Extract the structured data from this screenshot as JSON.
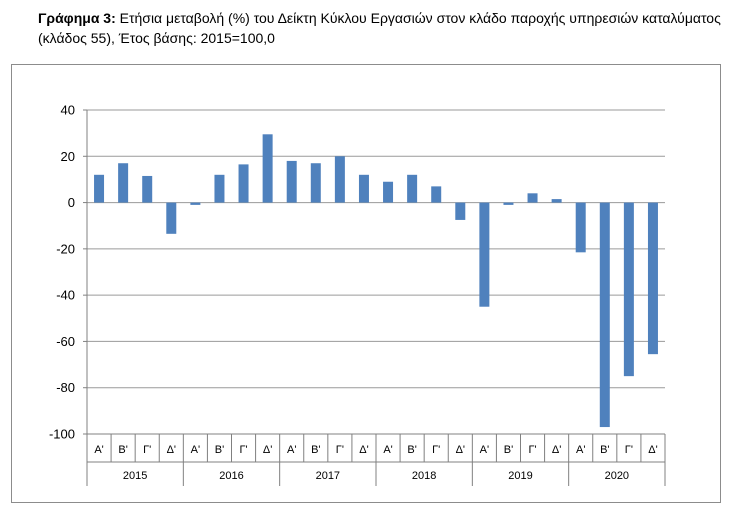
{
  "figure": {
    "label": "Γράφημα 3:",
    "caption": "Ετήσια μεταβολή (%) του Δείκτη Κύκλου Εργασιών στον κλάδο παροχής υπηρεσιών καταλύματος (κλάδος 55), Έτος βάσης: 2015=100,0"
  },
  "chart_data": {
    "type": "bar",
    "title": "",
    "xlabel": "",
    "ylabel": "",
    "ylim": [
      -100,
      40
    ],
    "yticks": [
      40,
      20,
      0,
      -20,
      -40,
      -60,
      -80,
      -100
    ],
    "grid": true,
    "bar_color": "#4f81bd",
    "quarter_labels": [
      "Α'",
      "Β'",
      "Γ'",
      "Δ'"
    ],
    "years": [
      "2015",
      "2016",
      "2017",
      "2018",
      "2019",
      "2020"
    ],
    "values": [
      12,
      17,
      11.5,
      -13.5,
      -1,
      12,
      16.5,
      29.5,
      18,
      17,
      20,
      12,
      9,
      12,
      7,
      -7.5,
      -45,
      -1,
      4,
      1.5,
      -21.5,
      -97,
      -75,
      -65.5
    ]
  }
}
